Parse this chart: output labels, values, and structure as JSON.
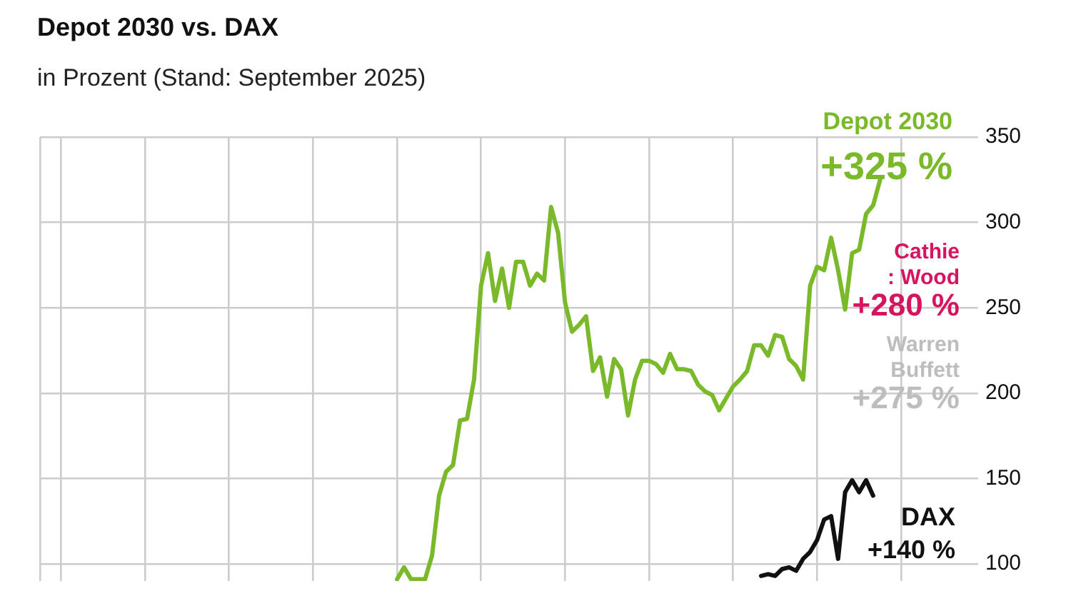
{
  "chart_data": {
    "type": "line",
    "title": "Depot 2030 vs. DAX",
    "subtitle": "in Prozent (Stand: September 2025)",
    "categories": [
      null,
      null,
      null,
      null,
      null,
      null,
      null,
      null,
      null,
      null,
      null,
      null,
      null,
      null,
      null,
      null,
      null,
      null,
      null,
      null,
      null,
      null,
      null,
      null,
      null,
      null,
      null,
      null,
      null,
      null,
      null,
      null,
      null,
      null,
      null,
      null,
      null,
      null,
      null,
      null,
      null,
      null,
      null,
      null,
      null,
      null,
      null,
      null,
      null,
      null,
      null,
      null,
      null,
      null,
      null,
      null,
      null,
      null,
      null,
      null,
      null,
      null,
      null,
      null,
      null,
      null,
      null,
      null,
      null,
      null,
      null,
      null,
      null,
      null,
      null,
      null,
      null,
      null,
      null,
      null,
      null,
      null,
      null,
      null,
      null,
      null,
      null,
      null,
      null,
      null,
      null,
      null,
      null,
      null,
      null,
      null,
      null,
      null,
      null,
      null,
      null,
      null,
      null,
      null,
      null,
      null,
      null,
      null,
      null,
      null,
      null,
      null,
      null,
      null,
      null,
      null,
      null,
      null,
      null,
      null,
      null,
      null,
      null,
      null,
      null,
      null,
      null,
      null,
      null,
      null,
      null,
      null,
      null,
      null,
      null
    ],
    "ylim": [
      90,
      350
    ],
    "yticks": [
      100,
      150,
      200,
      250,
      300,
      350
    ],
    "grid": true,
    "tick_labels": "y",
    "legend": false,
    "marker": "none",
    "line_style": "solid",
    "series": [
      {
        "name": "Depot 2030",
        "color": "#7ab929",
        "values": [
          null,
          null,
          null,
          null,
          null,
          null,
          null,
          null,
          null,
          null,
          null,
          null,
          null,
          null,
          null,
          null,
          null,
          null,
          null,
          null,
          null,
          null,
          null,
          null,
          null,
          null,
          null,
          null,
          null,
          null,
          null,
          null,
          null,
          null,
          null,
          null,
          null,
          null,
          null,
          null,
          null,
          null,
          null,
          null,
          null,
          null,
          null,
          null,
          null,
          null,
          null,
          91,
          98,
          91,
          91,
          91,
          105,
          140,
          154,
          158,
          184,
          185,
          208,
          263,
          282,
          254,
          273,
          250,
          277,
          277,
          263,
          270,
          266,
          309,
          294,
          253,
          236,
          240,
          245,
          213,
          221,
          198,
          220,
          214,
          187,
          208,
          219,
          219,
          217,
          212,
          223,
          214,
          214,
          213,
          205,
          201,
          199,
          190,
          197,
          204,
          208,
          213,
          228,
          228,
          222,
          234,
          233,
          220,
          216,
          208,
          263,
          274,
          272,
          291,
          272,
          249,
          282,
          284,
          305,
          310,
          325,
          null,
          null,
          null,
          null,
          null,
          null,
          null,
          null,
          null,
          null,
          null,
          null,
          null,
          null
        ]
      },
      {
        "name": "DAX",
        "color": "#111111",
        "values": [
          null,
          null,
          null,
          null,
          null,
          null,
          null,
          null,
          null,
          null,
          null,
          null,
          null,
          null,
          null,
          null,
          null,
          null,
          null,
          null,
          null,
          null,
          null,
          null,
          null,
          null,
          null,
          null,
          null,
          null,
          null,
          null,
          null,
          null,
          null,
          null,
          null,
          null,
          null,
          null,
          null,
          null,
          null,
          null,
          null,
          null,
          null,
          null,
          null,
          null,
          null,
          null,
          null,
          null,
          null,
          null,
          null,
          null,
          null,
          null,
          null,
          null,
          null,
          null,
          null,
          null,
          null,
          null,
          null,
          null,
          null,
          null,
          null,
          null,
          null,
          null,
          null,
          null,
          null,
          null,
          null,
          null,
          null,
          null,
          null,
          null,
          null,
          null,
          null,
          null,
          null,
          null,
          null,
          null,
          null,
          null,
          null,
          null,
          null,
          null,
          null,
          null,
          null,
          93,
          94,
          93,
          97,
          98,
          96,
          103,
          107,
          114,
          126,
          128,
          103,
          142,
          149,
          142,
          149,
          140,
          null,
          null,
          null,
          null,
          null,
          null,
          null,
          null,
          null,
          null,
          null,
          null,
          null,
          null,
          null
        ]
      }
    ],
    "annotations": [
      "+325 %",
      "Cathie\n: Wood\n+280 %",
      "Warren\nBuffett\n+275 %",
      "+140 %"
    ]
  }
}
